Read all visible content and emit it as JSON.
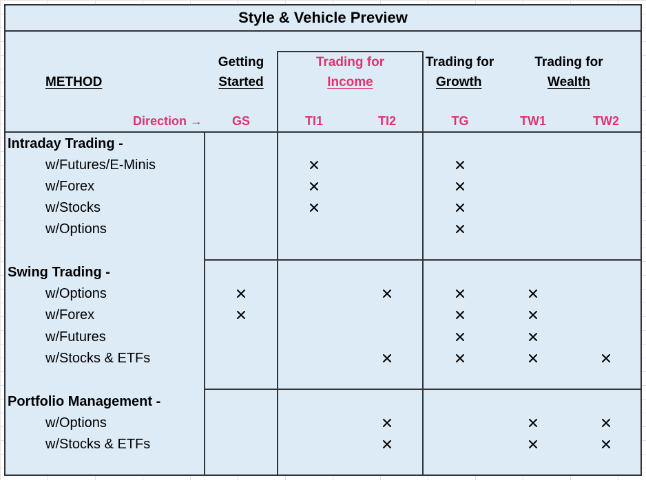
{
  "title": "Style & Vehicle Preview",
  "method_label": "METHOD",
  "headers": {
    "getting_started": [
      "Getting",
      "Started"
    ],
    "trading_income": [
      "Trading for",
      "Income"
    ],
    "trading_growth": [
      "Trading for",
      "Growth"
    ],
    "trading_wealth": [
      "Trading for",
      "Wealth"
    ]
  },
  "direction_label": "Direction →",
  "columns": [
    "GS",
    "TI1",
    "TI2",
    "TG",
    "TW1",
    "TW2"
  ],
  "sections": [
    {
      "name": "Intraday Trading -",
      "rows": [
        {
          "label": "w/Futures/E-Minis",
          "marks": [
            "TI1",
            "TG"
          ]
        },
        {
          "label": "w/Forex",
          "marks": [
            "TI1",
            "TG"
          ]
        },
        {
          "label": "w/Stocks",
          "marks": [
            "TI1",
            "TG"
          ]
        },
        {
          "label": "w/Options",
          "marks": [
            "TG"
          ]
        }
      ]
    },
    {
      "name": "Swing Trading -",
      "rows": [
        {
          "label": "w/Options",
          "marks": [
            "GS",
            "TI2",
            "TG",
            "TW1"
          ]
        },
        {
          "label": "w/Forex",
          "marks": [
            "GS",
            "TG",
            "TW1"
          ]
        },
        {
          "label": "w/Futures",
          "marks": [
            "TG",
            "TW1"
          ]
        },
        {
          "label": "w/Stocks & ETFs",
          "marks": [
            "TI2",
            "TG",
            "TW1",
            "TW2"
          ]
        }
      ]
    },
    {
      "name": "Portfolio Management -",
      "rows": [
        {
          "label": "w/Options",
          "marks": [
            "TI2",
            "TW1",
            "TW2"
          ]
        },
        {
          "label": "w/Stocks & ETFs",
          "marks": [
            "TI2",
            "TW1",
            "TW2"
          ]
        }
      ]
    }
  ],
  "mark_symbol_icon": "x-mark-icon",
  "colors": {
    "accent": "#e0336f",
    "sheet": "#ddebf7",
    "border": "#333333"
  }
}
